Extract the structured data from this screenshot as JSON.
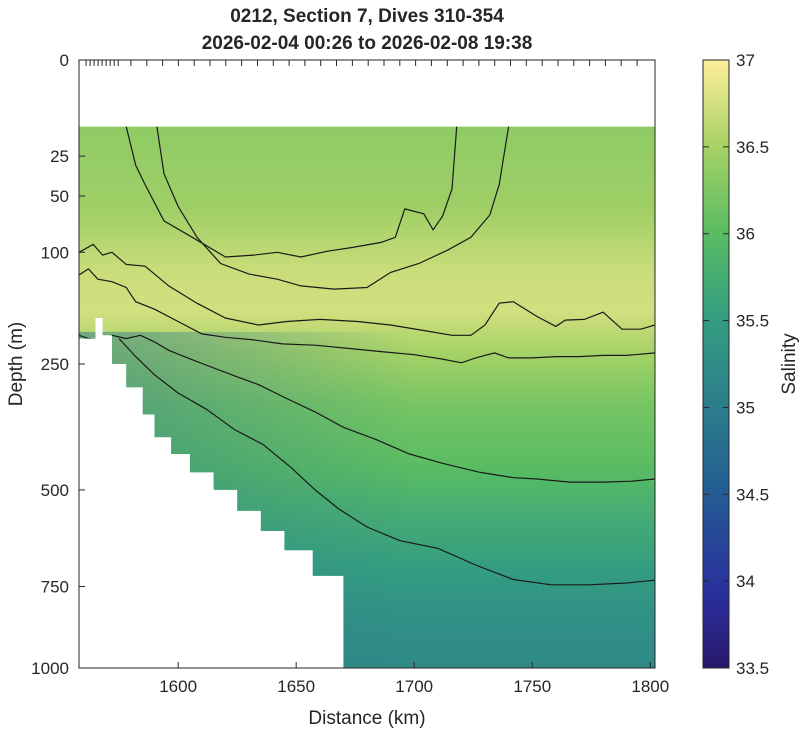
{
  "chart_data": {
    "type": "heatmap",
    "title": "0212, Section 7, Dives 310-354",
    "subtitle": "2026-02-04 00:26 to 2026-02-08 19:38",
    "xlabel": "Distance (km)",
    "ylabel": "Depth (m)",
    "colorbar_label": "Salinity",
    "xlim": [
      1558,
      1802
    ],
    "ylim": [
      0,
      1000
    ],
    "y_scale": "sqrt",
    "clim": [
      33.5,
      37
    ],
    "colormap": "haline",
    "grid": false,
    "x_ticks": [
      1600,
      1650,
      1700,
      1750,
      1800
    ],
    "y_ticks": [
      0,
      25,
      50,
      100,
      250,
      500,
      750,
      1000
    ],
    "colorbar_ticks": [
      33.5,
      34,
      34.5,
      35,
      35.5,
      36,
      36.5,
      37
    ],
    "data_top_depth": 12,
    "salinity_profile": [
      {
        "depth": 12,
        "salinity": 36.35
      },
      {
        "depth": 60,
        "salinity": 36.45
      },
      {
        "depth": 120,
        "salinity": 36.7
      },
      {
        "depth": 170,
        "salinity": 36.75
      },
      {
        "depth": 230,
        "salinity": 36.5
      },
      {
        "depth": 320,
        "salinity": 36.2
      },
      {
        "depth": 450,
        "salinity": 36.0
      },
      {
        "depth": 560,
        "salinity": 35.75
      },
      {
        "depth": 700,
        "salinity": 35.5
      },
      {
        "depth": 850,
        "salinity": 35.3
      },
      {
        "depth": 1000,
        "salinity": 35.2
      }
    ],
    "bottom_mask": [
      {
        "x": 1563,
        "depth": 210
      },
      {
        "x": 1565,
        "depth": 180
      },
      {
        "x": 1568,
        "depth": 205
      },
      {
        "x": 1572,
        "depth": 250
      },
      {
        "x": 1578,
        "depth": 290
      },
      {
        "x": 1585,
        "depth": 340
      },
      {
        "x": 1590,
        "depth": 385
      },
      {
        "x": 1597,
        "depth": 420
      },
      {
        "x": 1605,
        "depth": 460
      },
      {
        "x": 1615,
        "depth": 500
      },
      {
        "x": 1625,
        "depth": 550
      },
      {
        "x": 1635,
        "depth": 600
      },
      {
        "x": 1645,
        "depth": 650
      },
      {
        "x": 1657,
        "depth": 720
      },
      {
        "x": 1670,
        "depth": 740
      }
    ],
    "mask_to_bottom_until_x": 1670,
    "contours": [
      {
        "level": 36.5,
        "points": [
          [
            1578,
            12
          ],
          [
            1582,
            30
          ],
          [
            1586,
            42
          ],
          [
            1594,
            70
          ],
          [
            1606,
            85
          ],
          [
            1620,
            105
          ],
          [
            1632,
            103
          ],
          [
            1642,
            100
          ],
          [
            1652,
            105
          ],
          [
            1663,
            99
          ],
          [
            1674,
            95
          ],
          [
            1686,
            90
          ],
          [
            1692,
            85
          ],
          [
            1696,
            60
          ],
          [
            1704,
            64
          ],
          [
            1708,
            78
          ],
          [
            1712,
            66
          ],
          [
            1716,
            45
          ],
          [
            1718,
            12
          ]
        ]
      },
      {
        "level": 36.6,
        "points": [
          [
            1591,
            12
          ],
          [
            1594,
            35
          ],
          [
            1600,
            58
          ],
          [
            1608,
            85
          ],
          [
            1618,
            112
          ],
          [
            1630,
            124
          ],
          [
            1642,
            130
          ],
          [
            1652,
            138
          ],
          [
            1666,
            142
          ],
          [
            1680,
            140
          ],
          [
            1690,
            122
          ],
          [
            1702,
            112
          ],
          [
            1714,
            98
          ],
          [
            1724,
            85
          ],
          [
            1732,
            65
          ],
          [
            1736,
            42
          ],
          [
            1740,
            12
          ]
        ]
      },
      {
        "level": 36.4,
        "points": [
          [
            1558,
            100
          ],
          [
            1564,
            92
          ],
          [
            1568,
            103
          ],
          [
            1572,
            100
          ],
          [
            1578,
            113
          ],
          [
            1586,
            115
          ],
          [
            1596,
            138
          ],
          [
            1608,
            160
          ],
          [
            1620,
            180
          ],
          [
            1634,
            190
          ],
          [
            1646,
            185
          ],
          [
            1660,
            182
          ],
          [
            1676,
            185
          ],
          [
            1690,
            190
          ],
          [
            1704,
            198
          ],
          [
            1716,
            205
          ],
          [
            1724,
            205
          ],
          [
            1730,
            190
          ],
          [
            1736,
            160
          ],
          [
            1742,
            158
          ],
          [
            1752,
            178
          ],
          [
            1760,
            192
          ],
          [
            1764,
            183
          ],
          [
            1772,
            182
          ],
          [
            1780,
            172
          ],
          [
            1788,
            196
          ],
          [
            1796,
            196
          ],
          [
            1802,
            190
          ]
        ]
      },
      {
        "level": 36.3,
        "points": [
          [
            1558,
            125
          ],
          [
            1562,
            118
          ],
          [
            1566,
            130
          ],
          [
            1572,
            133
          ],
          [
            1578,
            140
          ],
          [
            1582,
            158
          ],
          [
            1590,
            168
          ],
          [
            1600,
            185
          ],
          [
            1610,
            203
          ],
          [
            1620,
            208
          ],
          [
            1632,
            212
          ],
          [
            1644,
            218
          ],
          [
            1658,
            220
          ],
          [
            1672,
            225
          ],
          [
            1686,
            230
          ],
          [
            1700,
            235
          ],
          [
            1712,
            242
          ],
          [
            1720,
            248
          ],
          [
            1726,
            240
          ],
          [
            1734,
            232
          ],
          [
            1740,
            240
          ],
          [
            1750,
            240
          ],
          [
            1760,
            238
          ],
          [
            1770,
            238
          ],
          [
            1780,
            236
          ],
          [
            1790,
            236
          ],
          [
            1802,
            232
          ]
        ]
      },
      {
        "level": 36.0,
        "points": [
          [
            1558,
            205
          ],
          [
            1562,
            210
          ],
          [
            1566,
            212
          ],
          [
            1572,
            205
          ],
          [
            1578,
            210
          ],
          [
            1584,
            205
          ],
          [
            1590,
            215
          ],
          [
            1596,
            228
          ],
          [
            1604,
            240
          ],
          [
            1614,
            255
          ],
          [
            1624,
            270
          ],
          [
            1634,
            285
          ],
          [
            1646,
            310
          ],
          [
            1658,
            335
          ],
          [
            1670,
            365
          ],
          [
            1684,
            390
          ],
          [
            1698,
            420
          ],
          [
            1712,
            440
          ],
          [
            1728,
            460
          ],
          [
            1742,
            472
          ],
          [
            1752,
            475
          ],
          [
            1766,
            482
          ],
          [
            1780,
            482
          ],
          [
            1792,
            480
          ],
          [
            1802,
            475
          ]
        ]
      },
      {
        "level": 35.6,
        "points": [
          [
            1575,
            210
          ],
          [
            1582,
            238
          ],
          [
            1590,
            268
          ],
          [
            1600,
            300
          ],
          [
            1612,
            330
          ],
          [
            1624,
            370
          ],
          [
            1636,
            400
          ],
          [
            1648,
            450
          ],
          [
            1658,
            500
          ],
          [
            1668,
            545
          ],
          [
            1680,
            590
          ],
          [
            1694,
            625
          ],
          [
            1710,
            645
          ],
          [
            1726,
            690
          ],
          [
            1742,
            730
          ],
          [
            1758,
            745
          ],
          [
            1774,
            745
          ],
          [
            1790,
            740
          ],
          [
            1802,
            732
          ]
        ]
      }
    ]
  }
}
